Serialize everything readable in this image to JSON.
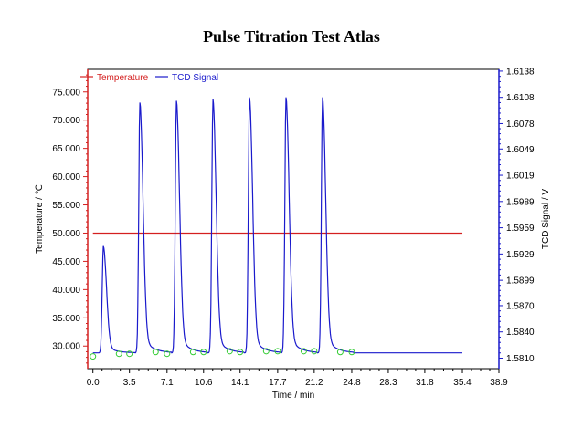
{
  "chart_data": {
    "type": "line",
    "title": "Pulse Titration Test Atlas",
    "xlabel": "Time / min",
    "ylabel_left": "Temperature / ℃",
    "ylabel_right": "TCD Signal / V",
    "xlim": [
      -0.5,
      38.9
    ],
    "ylim_left": [
      26.0,
      79.0
    ],
    "ylim_right": [
      1.5798,
      1.614
    ],
    "x_ticks": [
      "0.0",
      "3.5",
      "7.1",
      "10.6",
      "14.1",
      "17.7",
      "21.2",
      "24.8",
      "28.3",
      "31.8",
      "35.4",
      "38.9"
    ],
    "y_left_ticks": [
      "30.000",
      "35.000",
      "40.000",
      "45.000",
      "50.000",
      "55.000",
      "60.000",
      "65.000",
      "70.000",
      "75.000"
    ],
    "y_right_ticks": [
      "1.5810",
      "1.5840",
      "1.5870",
      "1.5899",
      "1.5929",
      "1.5959",
      "1.5989",
      "1.6019",
      "1.6049",
      "1.6078",
      "1.6108",
      "1.6138"
    ],
    "legend": [
      "Temperature",
      "TCD Signal"
    ],
    "colors": {
      "temperature": "#d42020",
      "tcd": "#1a1acc",
      "markers": "#33cc33",
      "axis_left": "#d42020",
      "axis_right": "#1a1acc"
    },
    "series": [
      {
        "name": "Temperature",
        "axis": "left",
        "x": [
          0.0,
          35.4
        ],
        "values": [
          50.0,
          50.0
        ]
      },
      {
        "name": "TCD Signal",
        "axis": "right",
        "baseline": 1.5816,
        "peaks": [
          {
            "x": 1.0,
            "value": 1.5938
          },
          {
            "x": 4.5,
            "value": 1.6102
          },
          {
            "x": 8.0,
            "value": 1.6104
          },
          {
            "x": 11.5,
            "value": 1.6106
          },
          {
            "x": 15.0,
            "value": 1.6108
          },
          {
            "x": 18.5,
            "value": 1.6108
          },
          {
            "x": 22.0,
            "value": 1.6108
          }
        ]
      }
    ],
    "markers": {
      "x": [
        0.0,
        2.5,
        3.5,
        6.0,
        7.1,
        9.6,
        10.6,
        13.1,
        14.1,
        16.6,
        17.7,
        20.2,
        21.2,
        23.7,
        24.8
      ],
      "values": [
        1.5812,
        1.5815,
        1.5815,
        1.5817,
        1.5815,
        1.5817,
        1.5817,
        1.5818,
        1.5817,
        1.5818,
        1.5818,
        1.5818,
        1.5818,
        1.5817,
        1.5817
      ]
    }
  }
}
